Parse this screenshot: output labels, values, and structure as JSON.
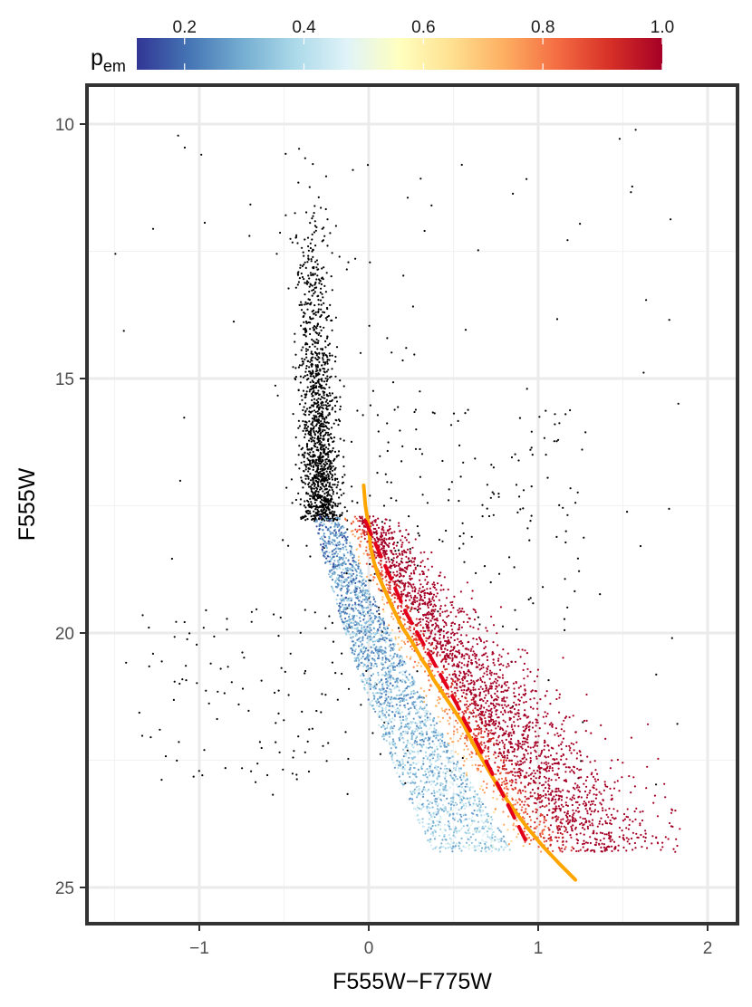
{
  "chart_data": {
    "type": "scatter",
    "title": "",
    "xlabel": "F555W−F775W",
    "ylabel": "F555W",
    "xlim": [
      -1.7,
      2.15
    ],
    "ylim": [
      25.75,
      9.3
    ],
    "y_reversed": true,
    "grid": true,
    "x_ticks": [
      -1,
      0,
      1,
      2
    ],
    "x_tick_labels": [
      "−1",
      "0",
      "1",
      "2"
    ],
    "y_ticks": [
      10,
      15,
      20,
      25
    ],
    "y_tick_labels": [
      "10",
      "15",
      "20",
      "25"
    ],
    "colorbar": {
      "label_main": "p",
      "label_sub": "em",
      "range": [
        0.12,
        1.0
      ],
      "ticks": [
        0.2,
        0.4,
        0.6,
        0.8,
        1.0
      ],
      "tick_labels": [
        "0.2",
        "0.4",
        "0.6",
        "0.8",
        "1.0"
      ],
      "colors": [
        "#313695",
        "#4575b4",
        "#74add1",
        "#abd9e9",
        "#e0f3f8",
        "#ffffbf",
        "#fee090",
        "#fdae61",
        "#f46d43",
        "#d73027",
        "#a50026"
      ],
      "placement": "top"
    },
    "series": [
      {
        "kind": "curve",
        "color": "#FFA500",
        "dash": "solid",
        "x": [
          -0.03,
          -0.02,
          0.0,
          0.01,
          0.03,
          0.06,
          0.1,
          0.14,
          0.2,
          0.26,
          0.31,
          0.35,
          0.38,
          0.42,
          0.46,
          0.5,
          0.56,
          0.62,
          0.69,
          0.76,
          0.84,
          0.93,
          1.03,
          1.13,
          1.22
        ],
        "y": [
          17.1,
          17.5,
          17.9,
          18.3,
          18.6,
          18.9,
          19.2,
          19.5,
          19.9,
          20.2,
          20.5,
          20.7,
          20.9,
          21.1,
          21.3,
          21.5,
          21.8,
          22.2,
          22.6,
          23.0,
          23.4,
          23.8,
          24.2,
          24.55,
          24.85
        ]
      },
      {
        "kind": "curve",
        "color": "#E3001B",
        "dash": "dashed",
        "x": [
          -0.02,
          0.02,
          0.06,
          0.1,
          0.14,
          0.18,
          0.22,
          0.27,
          0.32,
          0.37,
          0.42,
          0.47,
          0.52,
          0.57,
          0.63,
          0.69,
          0.75,
          0.81,
          0.87,
          0.93
        ],
        "y": [
          17.8,
          18.1,
          18.4,
          18.7,
          19.0,
          19.3,
          19.6,
          19.9,
          20.2,
          20.5,
          20.8,
          21.1,
          21.4,
          21.75,
          22.1,
          22.5,
          22.9,
          23.3,
          23.7,
          24.1
        ]
      },
      {
        "kind": "points",
        "group": "giant-branch",
        "color": "#000000",
        "count": 1350,
        "x_center": -0.32,
        "x_spread": 0.055,
        "y_range": [
          11.3,
          17.8
        ]
      },
      {
        "kind": "points",
        "group": "field-scatter",
        "color": "#000000",
        "count": 420,
        "x_range": [
          -1.5,
          1.9
        ],
        "y_range": [
          10.0,
          23.0
        ]
      },
      {
        "kind": "points",
        "group": "main-sequence",
        "color_by": "p_em",
        "count": 5200,
        "y_range": [
          17.7,
          24.3
        ]
      }
    ]
  }
}
